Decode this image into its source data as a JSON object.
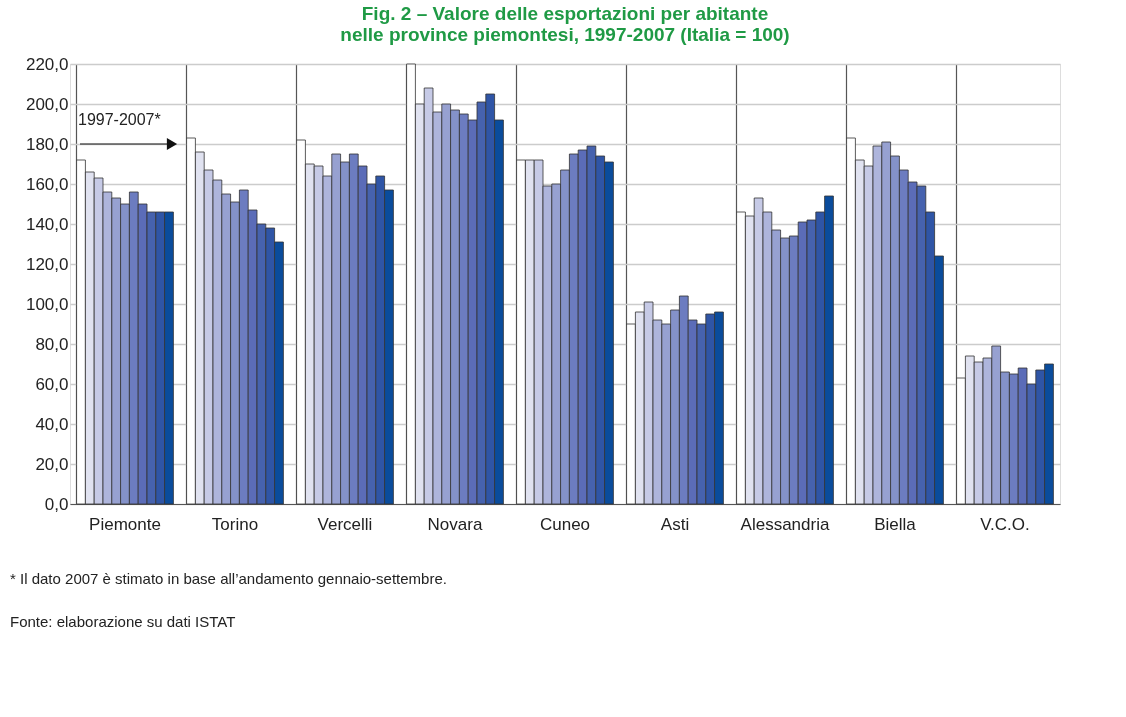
{
  "chart_data": {
    "type": "bar",
    "title": "Fig. 2 – Valore delle esportazioni per abitante nelle province piemontesi, 1997-2007 (Italia = 100)",
    "categories": [
      "Piemonte",
      "Torino",
      "Vercelli",
      "Novara",
      "Cuneo",
      "Asti",
      "Alessandria",
      "Biella",
      "V.C.O."
    ],
    "series": [
      {
        "color": "#ffffff",
        "values": [
          172,
          183,
          182,
          220,
          172,
          90,
          146,
          183,
          63
        ]
      },
      {
        "color": "#e0e2f0",
        "values": [
          166,
          176,
          170,
          200,
          172,
          96,
          144,
          172,
          74
        ]
      },
      {
        "color": "#c6cae6",
        "values": [
          163,
          167,
          169,
          208,
          172,
          101,
          153,
          169,
          71
        ]
      },
      {
        "color": "#aeb5dc",
        "values": [
          156,
          162,
          164,
          196,
          159,
          92,
          146,
          179,
          73
        ]
      },
      {
        "color": "#97a1d1",
        "values": [
          153,
          155,
          175,
          200,
          160,
          90,
          137,
          181,
          79
        ]
      },
      {
        "color": "#8492c9",
        "values": [
          150,
          151,
          171,
          197,
          167,
          97,
          133,
          174,
          66
        ]
      },
      {
        "color": "#6c7cc0",
        "values": [
          156,
          157,
          175,
          195,
          175,
          104,
          134,
          167,
          65
        ]
      },
      {
        "color": "#5b6cb8",
        "values": [
          150,
          147,
          169,
          192,
          177,
          92,
          141,
          161,
          68
        ]
      },
      {
        "color": "#4662ae",
        "values": [
          146,
          140,
          160,
          201,
          179,
          90,
          142,
          159,
          60
        ]
      },
      {
        "color": "#2f55a6",
        "values": [
          146,
          138,
          164,
          205,
          174,
          95,
          146,
          146,
          67
        ]
      },
      {
        "color": "#0a4c9c",
        "values": [
          146,
          131,
          157,
          192,
          171,
          96,
          154,
          124,
          70
        ]
      }
    ],
    "ylim": [
      0,
      220
    ],
    "yticks": [
      {
        "value": 0,
        "label": "0,0"
      },
      {
        "value": 20,
        "label": "20,0"
      },
      {
        "value": 40,
        "label": "40,0"
      },
      {
        "value": 60,
        "label": "60,0"
      },
      {
        "value": 80,
        "label": "80,0"
      },
      {
        "value": 100,
        "label": "100,0"
      },
      {
        "value": 120,
        "label": "120,0"
      },
      {
        "value": 140,
        "label": "140,0"
      },
      {
        "value": 160,
        "label": "160,0"
      },
      {
        "value": 180,
        "label": "180,0"
      },
      {
        "value": 200,
        "label": "200,0"
      },
      {
        "value": 220,
        "label": "220,0"
      }
    ],
    "grid": "y",
    "annotations": [
      "1997-2007*",
      "* Il dato 2007 è stimato in base all’andamento gennaio-settembre.",
      "Fonte: elaborazione su dati ISTAT"
    ]
  }
}
